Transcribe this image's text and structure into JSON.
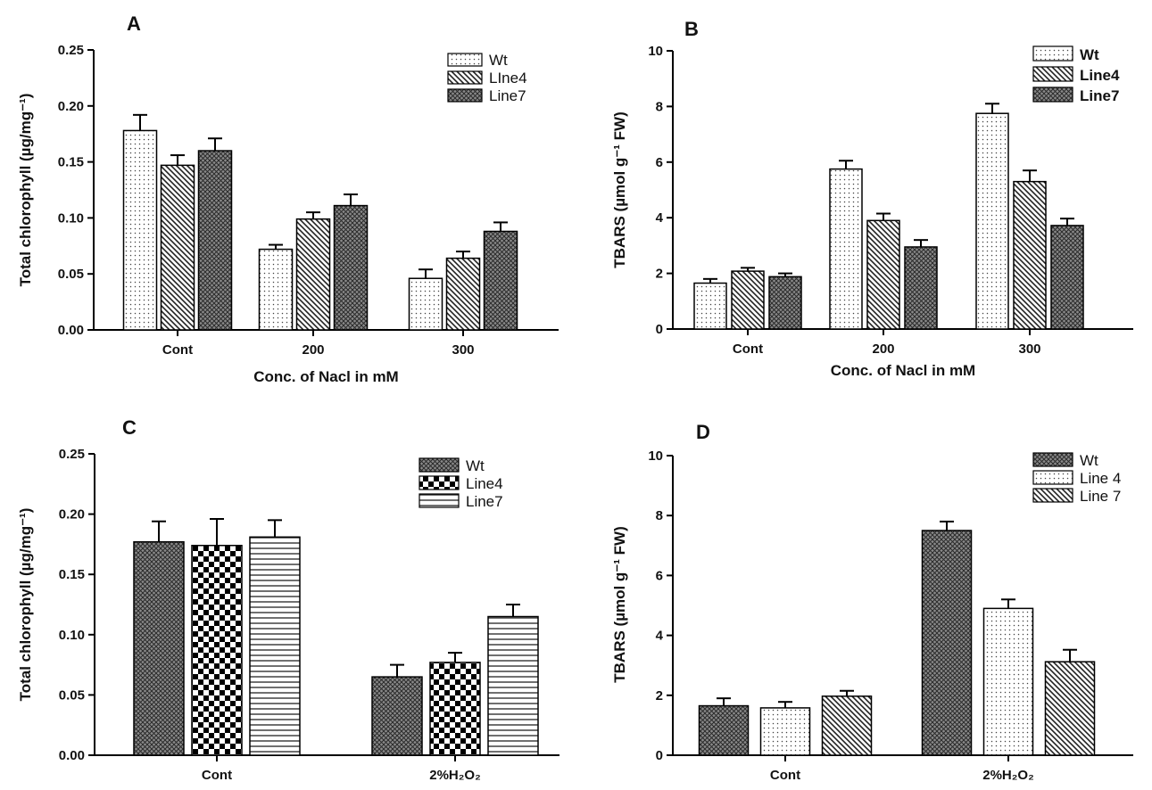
{
  "chart_data": [
    {
      "panel": "A",
      "type": "bar",
      "ylabel": "Total chlorophyll (µg/mg⁻¹)",
      "xlabel": "Conc. of Nacl in mM",
      "ylim": [
        0,
        0.25
      ],
      "yticks": [
        "0.00",
        "0.05",
        "0.10",
        "0.15",
        "0.20",
        "0.25"
      ],
      "categories": [
        "Cont",
        "200",
        "300"
      ],
      "legend_position": "top-right",
      "series": [
        {
          "name": "Wt",
          "pattern": "dots",
          "values": [
            0.178,
            0.072,
            0.046
          ],
          "errors": [
            0.014,
            0.004,
            0.008
          ]
        },
        {
          "name": "LIne4",
          "pattern": "diag-down",
          "values": [
            0.147,
            0.099,
            0.064
          ],
          "errors": [
            0.009,
            0.006,
            0.006
          ]
        },
        {
          "name": "Line7",
          "pattern": "crosshatch",
          "values": [
            0.16,
            0.111,
            0.088
          ],
          "errors": [
            0.011,
            0.01,
            0.008
          ]
        }
      ]
    },
    {
      "panel": "B",
      "type": "bar",
      "ylabel": "TBARS (µmol g⁻¹ FW)",
      "xlabel": "Conc. of Nacl in mM",
      "ylim": [
        0,
        10
      ],
      "yticks": [
        "0",
        "2",
        "4",
        "6",
        "8",
        "10"
      ],
      "categories": [
        "Cont",
        "200",
        "300"
      ],
      "legend_position": "top-right",
      "legend_bold": true,
      "series": [
        {
          "name": "Wt",
          "pattern": "dots",
          "values": [
            1.65,
            5.75,
            7.75
          ],
          "errors": [
            0.15,
            0.3,
            0.35
          ]
        },
        {
          "name": "Line4",
          "pattern": "diag-down",
          "values": [
            2.08,
            3.9,
            5.3
          ],
          "errors": [
            0.12,
            0.25,
            0.4
          ]
        },
        {
          "name": "Line7",
          "pattern": "crosshatch",
          "values": [
            1.88,
            2.95,
            3.72
          ],
          "errors": [
            0.12,
            0.25,
            0.25
          ]
        }
      ]
    },
    {
      "panel": "C",
      "type": "bar",
      "ylabel": "Total chlorophyll (µg/mg⁻¹)",
      "xlabel": "",
      "ylim": [
        0,
        0.25
      ],
      "yticks": [
        "0.00",
        "0.05",
        "0.10",
        "0.15",
        "0.20",
        "0.25"
      ],
      "categories": [
        "Cont",
        "2%H₂O₂"
      ],
      "legend_position": "top-right",
      "series": [
        {
          "name": "Wt",
          "pattern": "crosshatch",
          "values": [
            0.177,
            0.065
          ],
          "errors": [
            0.017,
            0.01
          ]
        },
        {
          "name": "Line4",
          "pattern": "checker",
          "values": [
            0.174,
            0.077
          ],
          "errors": [
            0.022,
            0.008
          ]
        },
        {
          "name": "Line7",
          "pattern": "hlines",
          "values": [
            0.181,
            0.115
          ],
          "errors": [
            0.014,
            0.01
          ]
        }
      ]
    },
    {
      "panel": "D",
      "type": "bar",
      "ylabel": "TBARS (µmol g⁻¹ FW)",
      "xlabel": "",
      "ylim": [
        0,
        10
      ],
      "yticks": [
        "0",
        "2",
        "4",
        "6",
        "8",
        "10"
      ],
      "categories": [
        "Cont",
        "2%H₂O₂"
      ],
      "legend_position": "top-right",
      "series": [
        {
          "name": "Wt",
          "pattern": "crosshatch",
          "values": [
            1.65,
            7.5
          ],
          "errors": [
            0.25,
            0.3
          ]
        },
        {
          "name": "Line 4",
          "pattern": "dots",
          "values": [
            1.58,
            4.9
          ],
          "errors": [
            0.2,
            0.3
          ]
        },
        {
          "name": "Line 7",
          "pattern": "diag-down",
          "values": [
            1.97,
            3.12
          ],
          "errors": [
            0.18,
            0.4
          ]
        }
      ]
    }
  ]
}
